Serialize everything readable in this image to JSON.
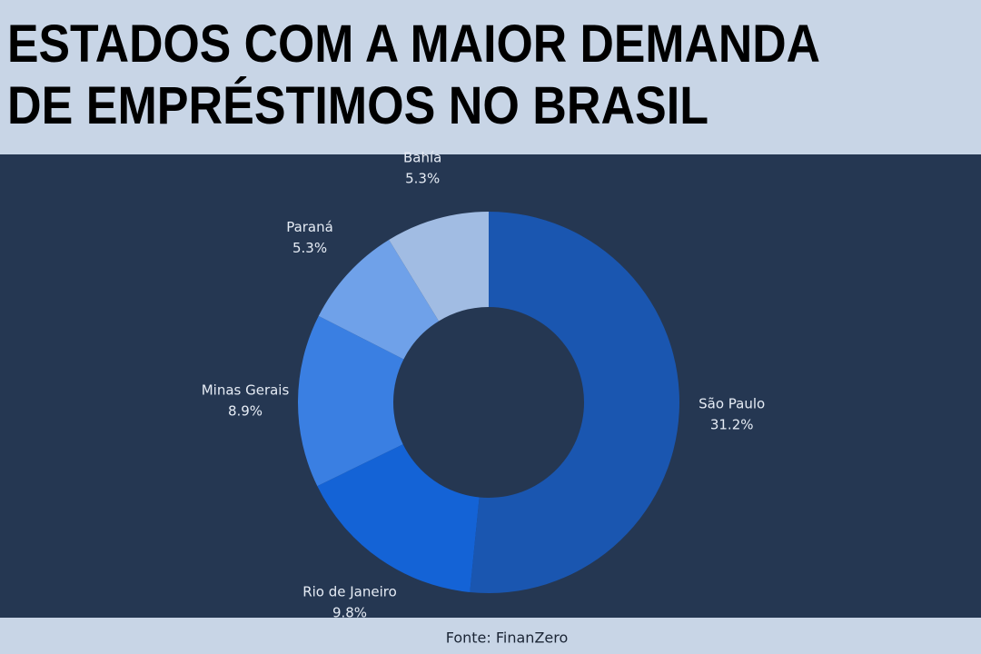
{
  "chart_data": {
    "type": "donut",
    "title": [
      "ESTADOS COM A MAIOR DEMANDA",
      "DE EMPRÉSTIMOS NO BRASIL"
    ],
    "categories": [
      "São Paulo",
      "Rio de Janeiro",
      "Minas Gerais",
      "Paraná",
      "Bahía"
    ],
    "values": [
      31.2,
      9.8,
      8.9,
      5.3,
      5.3
    ],
    "value_labels": [
      "31.2%",
      "9.8%",
      "8.9%",
      "5.3%",
      "5.3%"
    ],
    "colors": [
      "#1a56b0",
      "#1463d6",
      "#3a7fe2",
      "#6fa1e9",
      "#a1bce3"
    ],
    "source": "Fonte: FinanZero"
  }
}
